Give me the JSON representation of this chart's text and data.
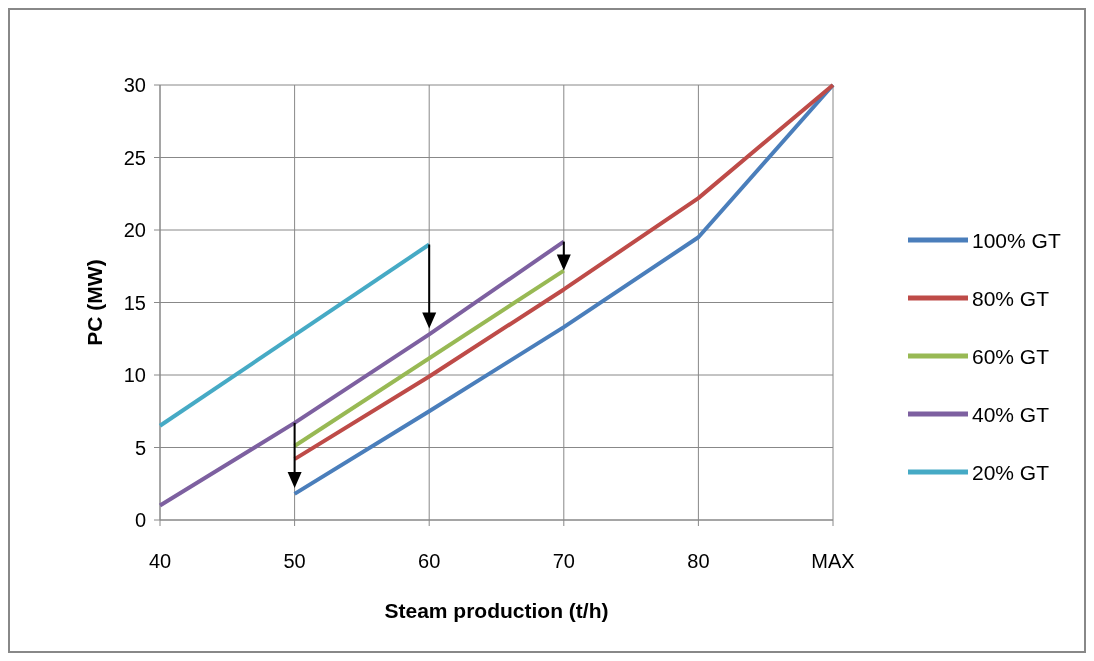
{
  "chart_data": {
    "type": "line",
    "xlabel": "Steam production (t/h)",
    "ylabel": "PC (MW)",
    "xlim": [
      40,
      90
    ],
    "xticks": [
      40,
      50,
      60,
      70,
      80,
      {
        "value": 90,
        "label": "MAX"
      }
    ],
    "ylim": [
      0,
      30
    ],
    "yticks": [
      0,
      5,
      10,
      15,
      20,
      25,
      30
    ],
    "grid": true,
    "legend": "right",
    "marker": "none",
    "line_style": "solid",
    "series": [
      {
        "name": "100% GT",
        "color": "#4a7ebb",
        "x": [
          50,
          60,
          70,
          80,
          90
        ],
        "values": [
          1.8,
          7.5,
          13.3,
          19.5,
          30
        ]
      },
      {
        "name": "80% GT",
        "color": "#be4b48",
        "x": [
          50,
          60,
          70,
          80,
          90
        ],
        "values": [
          4.2,
          9.9,
          15.9,
          22.2,
          30
        ]
      },
      {
        "name": "60% GT",
        "color": "#98b954",
        "x": [
          50,
          70
        ],
        "values": [
          5.1,
          17.2
        ]
      },
      {
        "name": "40% GT",
        "color": "#7d60a0",
        "x": [
          40,
          50,
          60,
          70
        ],
        "values": [
          1,
          6.7,
          12.8,
          19.2
        ]
      },
      {
        "name": "20% GT",
        "color": "#46aac5",
        "x": [
          40,
          60
        ],
        "values": [
          6.5,
          19
        ]
      }
    ]
  }
}
